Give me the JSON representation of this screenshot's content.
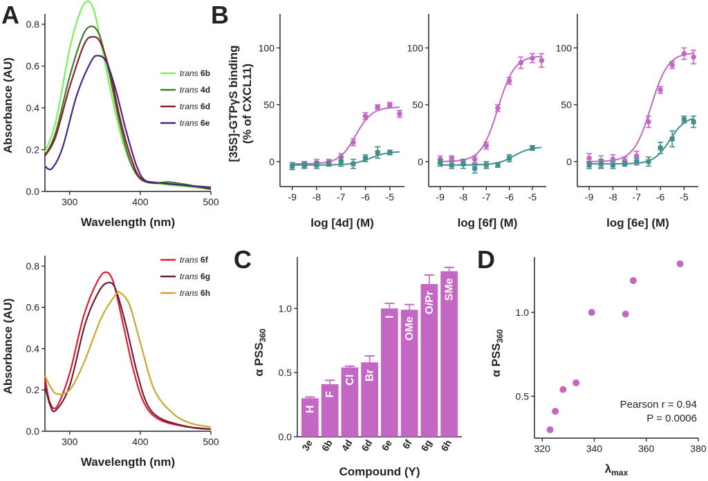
{
  "panel_letters": {
    "a": "A",
    "b": "B",
    "c": "C",
    "d": "D"
  },
  "colors": {
    "magenta": "#c466c4",
    "teal": "#3f8f8c",
    "6b": "#7cf05a",
    "4d": "#3c7a2c",
    "6d": "#8c1c28",
    "6e": "#4a2288",
    "6f": "#e21a2c",
    "6g": "#6c1c38",
    "6h": "#c8a82c"
  },
  "chart_data": [
    {
      "id": "A_top",
      "type": "line",
      "xlabel": "Wavelength (nm)",
      "ylabel": "Absorbance (AU)",
      "xlim": [
        265,
        500
      ],
      "ylim": [
        0,
        0.85
      ],
      "xticks": [
        300,
        400,
        500
      ],
      "yticks": [
        0.0,
        0.2,
        0.4,
        0.6,
        0.8
      ],
      "legend_position": "right",
      "series": [
        {
          "key": "6b",
          "prefix": "trans",
          "name": "6b",
          "color": "#7cf05a",
          "points": [
            [
              265,
              0.19
            ],
            [
              280,
              0.33
            ],
            [
              300,
              0.68
            ],
            [
              315,
              0.86
            ],
            [
              326,
              0.91
            ],
            [
              335,
              0.86
            ],
            [
              345,
              0.7
            ],
            [
              360,
              0.45
            ],
            [
              375,
              0.24
            ],
            [
              390,
              0.11
            ],
            [
              405,
              0.05
            ],
            [
              430,
              0.035
            ],
            [
              460,
              0.025
            ],
            [
              500,
              0.01
            ]
          ]
        },
        {
          "key": "4d",
          "prefix": "trans",
          "name": "4d",
          "color": "#3c7a2c",
          "points": [
            [
              265,
              0.17
            ],
            [
              280,
              0.28
            ],
            [
              300,
              0.55
            ],
            [
              318,
              0.74
            ],
            [
              330,
              0.79
            ],
            [
              342,
              0.75
            ],
            [
              355,
              0.58
            ],
            [
              370,
              0.34
            ],
            [
              385,
              0.15
            ],
            [
              400,
              0.06
            ],
            [
              420,
              0.04
            ],
            [
              440,
              0.045
            ],
            [
              470,
              0.03
            ],
            [
              500,
              0.01
            ]
          ]
        },
        {
          "key": "6d",
          "prefix": "trans",
          "name": "6d",
          "color": "#8c1c28",
          "points": [
            [
              265,
              0.17
            ],
            [
              280,
              0.26
            ],
            [
              300,
              0.5
            ],
            [
              320,
              0.7
            ],
            [
              332,
              0.74
            ],
            [
              344,
              0.71
            ],
            [
              358,
              0.56
            ],
            [
              372,
              0.34
            ],
            [
              388,
              0.15
            ],
            [
              402,
              0.06
            ],
            [
              430,
              0.04
            ],
            [
              460,
              0.03
            ],
            [
              500,
              0.015
            ]
          ]
        },
        {
          "key": "6e",
          "prefix": "trans",
          "name": "6e",
          "color": "#4a2288",
          "points": [
            [
              265,
              0.12
            ],
            [
              275,
              0.11
            ],
            [
              290,
              0.21
            ],
            [
              310,
              0.46
            ],
            [
              330,
              0.62
            ],
            [
              340,
              0.65
            ],
            [
              352,
              0.62
            ],
            [
              365,
              0.49
            ],
            [
              380,
              0.29
            ],
            [
              395,
              0.12
            ],
            [
              408,
              0.05
            ],
            [
              430,
              0.04
            ],
            [
              460,
              0.03
            ],
            [
              500,
              0.02
            ]
          ]
        }
      ]
    },
    {
      "id": "A_bottom",
      "type": "line",
      "xlabel": "Wavelength (nm)",
      "ylabel": "Absorbance (AU)",
      "xlim": [
        265,
        500
      ],
      "ylim": [
        0,
        0.85
      ],
      "xticks": [
        300,
        400,
        500
      ],
      "yticks": [
        0.0,
        0.2,
        0.4,
        0.6,
        0.8
      ],
      "legend_position": "top-right",
      "series": [
        {
          "key": "6f",
          "prefix": "trans",
          "name": "6f",
          "color": "#e21a2c",
          "points": [
            [
              265,
              0.26
            ],
            [
              272,
              0.14
            ],
            [
              282,
              0.12
            ],
            [
              300,
              0.28
            ],
            [
              320,
              0.56
            ],
            [
              340,
              0.73
            ],
            [
              352,
              0.77
            ],
            [
              362,
              0.72
            ],
            [
              375,
              0.53
            ],
            [
              390,
              0.3
            ],
            [
              405,
              0.14
            ],
            [
              425,
              0.06
            ],
            [
              460,
              0.025
            ],
            [
              500,
              0.01
            ]
          ]
        },
        {
          "key": "6g",
          "prefix": "trans",
          "name": "6g",
          "color": "#6c1c38",
          "points": [
            [
              265,
              0.22
            ],
            [
              272,
              0.13
            ],
            [
              280,
              0.1
            ],
            [
              300,
              0.22
            ],
            [
              322,
              0.52
            ],
            [
              342,
              0.68
            ],
            [
              356,
              0.72
            ],
            [
              366,
              0.68
            ],
            [
              380,
              0.51
            ],
            [
              395,
              0.29
            ],
            [
              410,
              0.13
            ],
            [
              430,
              0.06
            ],
            [
              470,
              0.02
            ],
            [
              500,
              0.01
            ]
          ]
        },
        {
          "key": "6h",
          "prefix": "trans",
          "name": "6h",
          "color": "#c8a82c",
          "points": [
            [
              265,
              0.27
            ],
            [
              272,
              0.22
            ],
            [
              282,
              0.18
            ],
            [
              300,
              0.2
            ],
            [
              320,
              0.33
            ],
            [
              345,
              0.55
            ],
            [
              365,
              0.66
            ],
            [
              372,
              0.67
            ],
            [
              385,
              0.61
            ],
            [
              400,
              0.43
            ],
            [
              420,
              0.2
            ],
            [
              445,
              0.09
            ],
            [
              470,
              0.04
            ],
            [
              500,
              0.02
            ]
          ]
        }
      ]
    },
    {
      "id": "B1",
      "type": "scatter",
      "xlabel": "log [4d] (M)",
      "ylabel_lines": [
        "[35S]-GTPγS binding",
        "(% of CXCL11)"
      ],
      "xlim": [
        -9.5,
        -4.4
      ],
      "ylim": [
        -22,
        130
      ],
      "xticks": [
        -9,
        -8,
        -7,
        -6,
        -5
      ],
      "yticks": [
        0,
        50,
        100
      ],
      "series": [
        {
          "name": "",
          "color": "#c466c4",
          "marker": "circle",
          "x": [
            -9,
            -8.5,
            -8,
            -7.5,
            -7,
            -6.5,
            -6,
            -5.5,
            -5,
            -4.6
          ],
          "y": [
            -4,
            -3,
            -1,
            0,
            4,
            17,
            40,
            48,
            50,
            42
          ],
          "err": [
            3,
            2,
            3,
            2,
            3,
            3,
            3,
            2,
            2,
            3
          ],
          "fit": {
            "bottom": -2,
            "top": 48,
            "ec50": -6.4,
            "hill": 1.3
          }
        },
        {
          "name": "",
          "color": "#3f8f8c",
          "marker": "square",
          "x": [
            -9,
            -8.5,
            -8,
            -7.5,
            -7,
            -6.5,
            -6,
            -5.5,
            -5
          ],
          "y": [
            -4,
            -3,
            -3,
            -2,
            0,
            -2,
            3,
            8,
            8
          ],
          "err": [
            3,
            3,
            3,
            2,
            4,
            4,
            3,
            5,
            2
          ],
          "fit": {
            "bottom": -3,
            "top": 9,
            "ec50": -5.8,
            "hill": 1.2
          }
        }
      ]
    },
    {
      "id": "B2",
      "type": "scatter",
      "xlabel": "log [6f] (M)",
      "xlim": [
        -9.5,
        -4.4
      ],
      "ylim": [
        -22,
        130
      ],
      "xticks": [
        -9,
        -8,
        -7,
        -6,
        -5
      ],
      "yticks": [
        0,
        50,
        100
      ],
      "series": [
        {
          "name": "",
          "color": "#c466c4",
          "marker": "circle",
          "x": [
            -9,
            -8.5,
            -8,
            -7.5,
            -7,
            -6.5,
            -6,
            -5.5,
            -5,
            -4.6
          ],
          "y": [
            2,
            3,
            0,
            2,
            14,
            47,
            71,
            87,
            91,
            89
          ],
          "err": [
            3,
            2,
            2,
            3,
            3,
            3,
            3,
            5,
            4,
            6
          ],
          "fit": {
            "bottom": 0,
            "top": 93,
            "ec50": -6.5,
            "hill": 1.2
          }
        },
        {
          "name": "",
          "color": "#3f8f8c",
          "marker": "square",
          "x": [
            -9,
            -8.5,
            -8,
            -7.5,
            -7,
            -6.5,
            -6,
            -5
          ],
          "y": [
            -1,
            -3,
            -2,
            -6,
            -3,
            -3,
            3,
            12
          ],
          "err": [
            3,
            3,
            4,
            4,
            3,
            2,
            3,
            2
          ],
          "fit": {
            "bottom": -3,
            "top": 13,
            "ec50": -5.8,
            "hill": 1.2
          }
        }
      ]
    },
    {
      "id": "B3",
      "type": "scatter",
      "xlabel": "log [6e] (M)",
      "xlim": [
        -9.5,
        -4.4
      ],
      "ylim": [
        -22,
        130
      ],
      "xticks": [
        -9,
        -8,
        -7,
        -6,
        -5
      ],
      "yticks": [
        0,
        50,
        100
      ],
      "series": [
        {
          "name": "",
          "color": "#c466c4",
          "marker": "circle",
          "x": [
            -9,
            -8.5,
            -8,
            -7.5,
            -7,
            -6.5,
            -6,
            -5.5,
            -5,
            -4.6
          ],
          "y": [
            3,
            0,
            2,
            1,
            5,
            35,
            63,
            85,
            95,
            92
          ],
          "err": [
            4,
            5,
            4,
            3,
            4,
            5,
            3,
            3,
            5,
            6
          ],
          "fit": {
            "bottom": 0,
            "top": 96,
            "ec50": -6.4,
            "hill": 1.2
          }
        },
        {
          "name": "",
          "color": "#3f8f8c",
          "marker": "square",
          "x": [
            -9,
            -8.5,
            -8,
            -7.5,
            -7,
            -6.5,
            -6,
            -5.5,
            -5,
            -4.6
          ],
          "y": [
            -3,
            -2,
            -3,
            -2,
            0,
            0,
            12,
            20,
            37,
            35
          ],
          "err": [
            3,
            4,
            3,
            2,
            3,
            4,
            5,
            7,
            3,
            5
          ],
          "fit": {
            "bottom": -2,
            "top": 40,
            "ec50": -5.6,
            "hill": 1.3
          }
        }
      ]
    },
    {
      "id": "C",
      "type": "bar",
      "xlabel": "Compound (Y)",
      "ylabel": "α PSS",
      "ylabel_sub": "360",
      "ylim": [
        0,
        1.4
      ],
      "yticks": [
        0.0,
        0.5,
        1.0
      ],
      "categories": [
        "3e",
        "6b",
        "4d",
        "6d",
        "6e",
        "6f",
        "6g",
        "6h"
      ],
      "bar_labels": [
        "H",
        "F",
        "Cl",
        "Br",
        "I",
        "OMe",
        "OiPr",
        "SMe"
      ],
      "values": [
        0.3,
        0.41,
        0.54,
        0.58,
        1.0,
        0.99,
        1.19,
        1.29
      ],
      "errors": [
        0.01,
        0.03,
        0.01,
        0.05,
        0.04,
        0.04,
        0.07,
        0.03
      ],
      "color": "#c466c4"
    },
    {
      "id": "D",
      "type": "scatter",
      "xlabel": "λ",
      "xlabel_sub": "max",
      "ylabel": "α PSS",
      "ylabel_sub": "360",
      "xlim": [
        317,
        380
      ],
      "ylim": [
        0.25,
        1.33
      ],
      "xticks": [
        320,
        340,
        360,
        380
      ],
      "yticks": [
        0.5,
        1.0
      ],
      "x": [
        323,
        325,
        328,
        333,
        339,
        352,
        355,
        373
      ],
      "y": [
        0.3,
        0.41,
        0.54,
        0.58,
        1.0,
        0.99,
        1.19,
        1.29
      ],
      "annotation": [
        "Pearson r = 0.94",
        "P = 0.0006"
      ],
      "color": "#c466c4"
    }
  ]
}
